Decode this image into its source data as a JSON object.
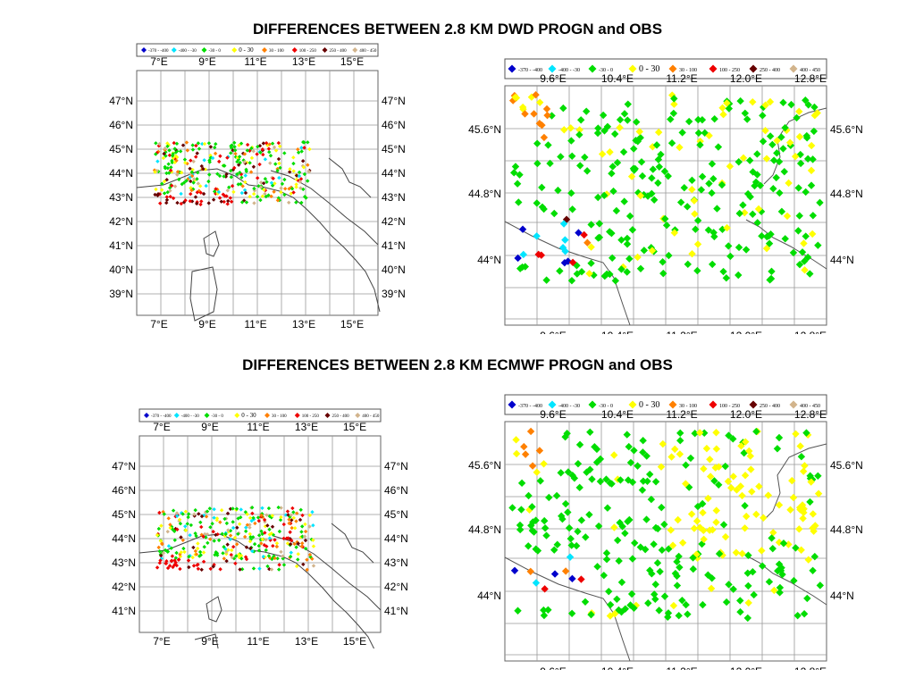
{
  "titles": {
    "top": "DIFFERENCES BETWEEN 2.8 KM DWD PROGN and OBS",
    "bottom": "DIFFERENCES BETWEEN 2.8 KM ECMWF PROGN and OBS"
  },
  "legend": [
    {
      "label": "-370 - -400",
      "color": "#0000cc"
    },
    {
      "label": "-400 - -30",
      "color": "#00e5ff"
    },
    {
      "label": "-30 - 0",
      "color": "#00dd00"
    },
    {
      "label": "0 - 30",
      "color": "#ffff00"
    },
    {
      "label": "30 - 100",
      "color": "#ff8000"
    },
    {
      "label": "100 - 250",
      "color": "#ee0000"
    },
    {
      "label": "250 - 400",
      "color": "#660000"
    },
    {
      "label": "400 - 450",
      "color": "#d2b48c"
    }
  ],
  "overview": {
    "lon_ticks": [
      "7°E",
      "9°E",
      "11°E",
      "13°E",
      "15°E"
    ],
    "lat_ticks_top": [
      "47°N",
      "46°N",
      "45°N",
      "44°N",
      "43°N",
      "42°N",
      "41°N",
      "40°N",
      "39°N"
    ],
    "lat_ticks_bottom": [
      "47°N",
      "46°N",
      "45°N",
      "44°N",
      "43°N",
      "42°N",
      "41°N"
    ]
  },
  "zoom": {
    "lon_ticks": [
      "9.6°E",
      "10.4°E",
      "11.2°E",
      "12.0°E",
      "12.8°E"
    ],
    "lat_ticks": [
      "45.6°N",
      "44.8°N",
      "44°N"
    ]
  }
}
